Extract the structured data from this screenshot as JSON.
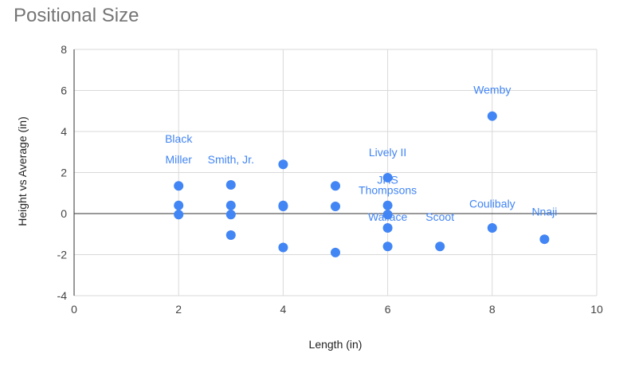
{
  "chart_data": {
    "type": "scatter",
    "title": "Positional Size",
    "xlabel": "Length (in)",
    "ylabel": "Height vs Average (in)",
    "xlim": [
      0,
      10
    ],
    "ylim": [
      -4,
      8
    ],
    "xticks": [
      0,
      2,
      4,
      6,
      8,
      10
    ],
    "yticks": [
      -4,
      -2,
      0,
      2,
      4,
      6,
      8
    ],
    "grid": true,
    "legend": "none",
    "color": "#4285F4",
    "points": [
      {
        "x": 2,
        "y": 1.35
      },
      {
        "x": 2,
        "y": 0.4
      },
      {
        "x": 2,
        "y": -0.05
      },
      {
        "x": 3,
        "y": 1.4
      },
      {
        "x": 3,
        "y": 0.4
      },
      {
        "x": 3,
        "y": -0.05
      },
      {
        "x": 3,
        "y": -1.05
      },
      {
        "x": 4,
        "y": 2.4
      },
      {
        "x": 4,
        "y": 0.4
      },
      {
        "x": 4,
        "y": 0.35
      },
      {
        "x": 4,
        "y": -1.65
      },
      {
        "x": 5,
        "y": 1.35
      },
      {
        "x": 5,
        "y": 0.35
      },
      {
        "x": 5,
        "y": -1.9
      },
      {
        "x": 6,
        "y": 1.75
      },
      {
        "x": 6,
        "y": 0.4
      },
      {
        "x": 6,
        "y": -0.05
      },
      {
        "x": 6,
        "y": -0.7
      },
      {
        "x": 6,
        "y": -1.6
      },
      {
        "x": 7,
        "y": -1.6
      },
      {
        "x": 8,
        "y": 4.75
      },
      {
        "x": 8,
        "y": -0.7
      },
      {
        "x": 9,
        "y": -1.25
      }
    ],
    "annotations": [
      {
        "text": "Black",
        "x": 2,
        "y": 3.45
      },
      {
        "text": "Miller",
        "x": 2,
        "y": 2.45
      },
      {
        "text": "Smith, Jr.",
        "x": 3,
        "y": 2.45
      },
      {
        "text": "Lively II",
        "x": 6,
        "y": 2.8
      },
      {
        "text": "JHS",
        "x": 6,
        "y": 1.45
      },
      {
        "text": "Thompsons",
        "x": 6,
        "y": 0.95
      },
      {
        "text": "Wallace",
        "x": 6,
        "y": -0.35
      },
      {
        "text": "Scoot",
        "x": 7,
        "y": -0.35
      },
      {
        "text": "Wemby",
        "x": 8,
        "y": 5.85
      },
      {
        "text": "Coulibaly",
        "x": 8,
        "y": 0.3
      },
      {
        "text": "Nnaji",
        "x": 9,
        "y": -0.1
      }
    ]
  }
}
